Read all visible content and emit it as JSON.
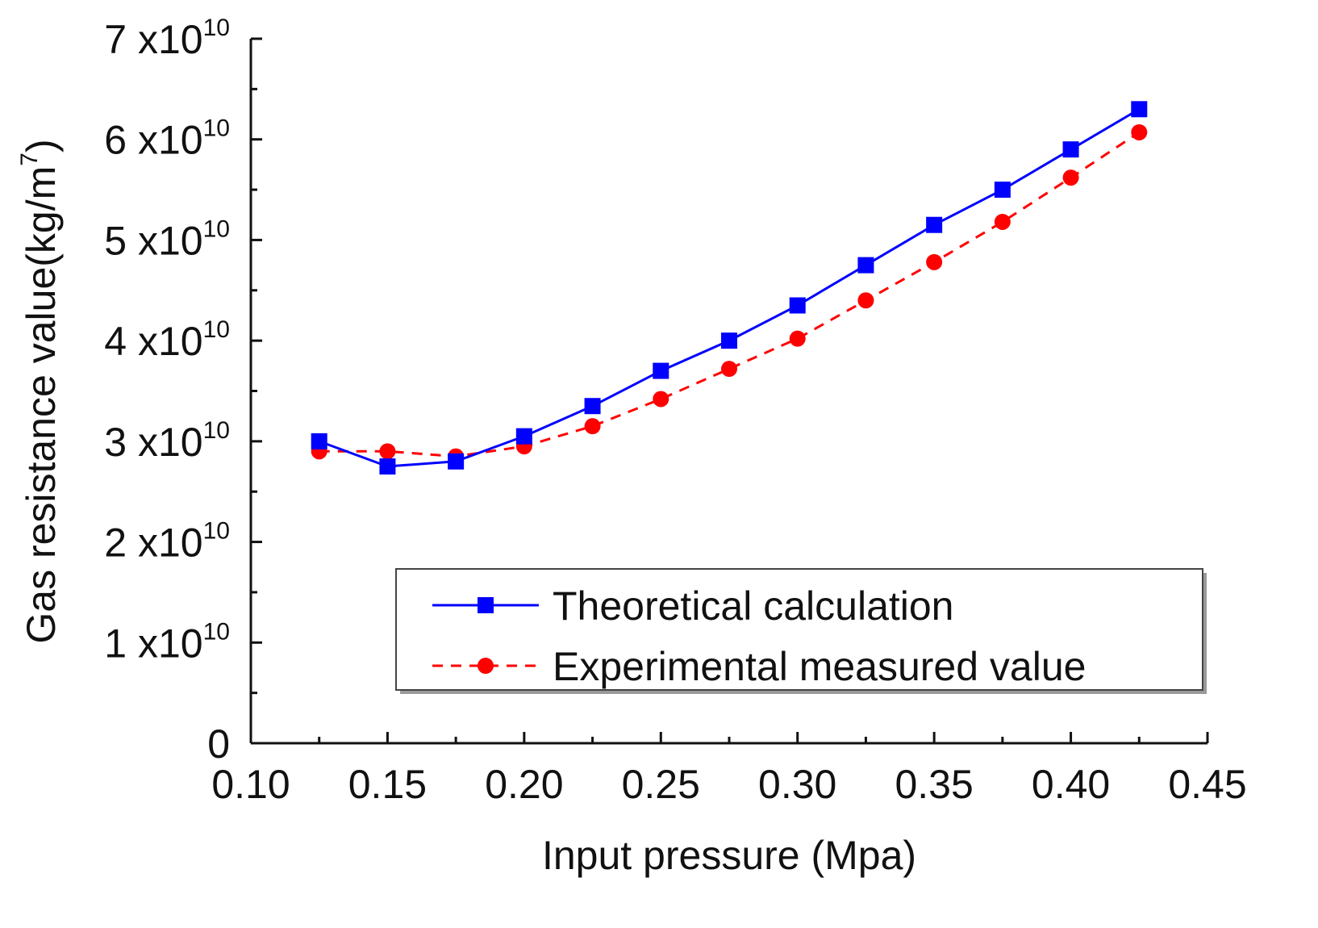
{
  "chart_data": {
    "type": "line",
    "title": "",
    "xlabel": "Input pressure (Mpa)",
    "ylabel": "Gas resistance value(kg/m",
    "ylabel_sup": "7",
    "ylabel_close": ")",
    "xlim": [
      0.1,
      0.45
    ],
    "ylim": [
      0,
      70000000000.0
    ],
    "x_ticks": [
      0.1,
      0.15,
      0.2,
      0.25,
      0.3,
      0.35,
      0.4,
      0.45
    ],
    "x_tick_labels": [
      "0.10",
      "0.15",
      "0.20",
      "0.25",
      "0.30",
      "0.35",
      "0.40",
      "0.45"
    ],
    "y_ticks": [
      0,
      10000000000.0,
      20000000000.0,
      30000000000.0,
      40000000000.0,
      50000000000.0,
      60000000000.0,
      70000000000.0
    ],
    "y_tick_labels": [
      {
        "base": "0",
        "exp": ""
      },
      {
        "base": "1 x10",
        "exp": "10"
      },
      {
        "base": "2 x10",
        "exp": "10"
      },
      {
        "base": "3 x10",
        "exp": "10"
      },
      {
        "base": "4 x10",
        "exp": "10"
      },
      {
        "base": "5 x10",
        "exp": "10"
      },
      {
        "base": "6 x10",
        "exp": "10"
      },
      {
        "base": "7 x10",
        "exp": "10"
      }
    ],
    "grid": false,
    "legend_position": "bottom-right",
    "x": [
      0.125,
      0.15,
      0.175,
      0.2,
      0.225,
      0.25,
      0.275,
      0.3,
      0.325,
      0.35,
      0.375,
      0.4,
      0.425
    ],
    "series": [
      {
        "name": "Theoretical calculation",
        "color": "#0000ff",
        "line_style": "solid",
        "marker": "square",
        "values": [
          30000000000.0,
          27500000000.0,
          28000000000.0,
          30500000000.0,
          33500000000.0,
          37000000000.0,
          40000000000.0,
          43500000000.0,
          47500000000.0,
          51500000000.0,
          55000000000.0,
          59000000000.0,
          63000000000.0
        ]
      },
      {
        "name": "Experimental measured value",
        "color": "#ff0000",
        "line_style": "dashed",
        "marker": "circle",
        "values": [
          29000000000.0,
          29000000000.0,
          28500000000.0,
          29500000000.0,
          31500000000.0,
          34200000000.0,
          37200000000.0,
          40200000000.0,
          44000000000.0,
          47800000000.0,
          51800000000.0,
          56200000000.0,
          60700000000.0
        ]
      }
    ]
  }
}
